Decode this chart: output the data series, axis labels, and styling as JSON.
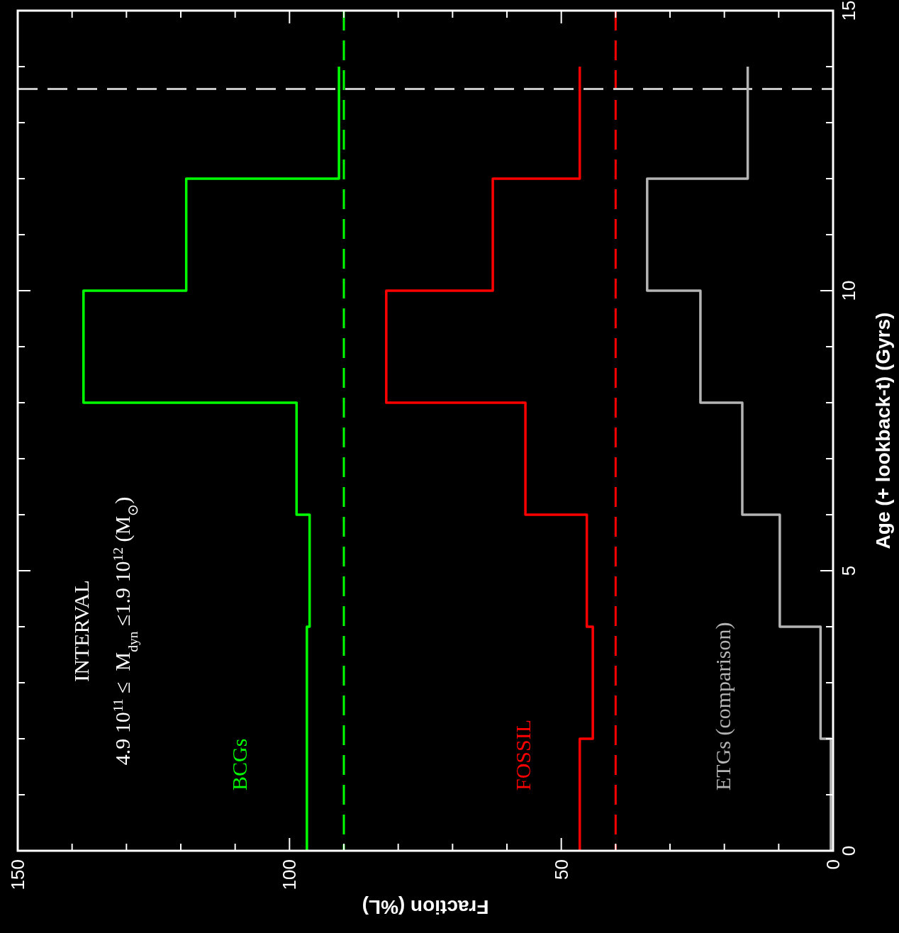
{
  "chart_data": {
    "type": "line",
    "xlabel": "Fraction (%L)",
    "ylabel": "Age (+ lookback-t) (Gyrs)",
    "series": [
      {
        "name": "BCGs",
        "color": "#00ff00",
        "x": [
          96.8,
          96.8,
          96.3,
          96.3,
          98.7,
          98.7,
          137.9,
          137.9,
          119,
          119,
          90.9,
          90.9
        ],
        "values": [
          0,
          4,
          4,
          6,
          6,
          8,
          8,
          10,
          10,
          12,
          12,
          14
        ]
      },
      {
        "name": "FOSSIL",
        "color": "#ff0000",
        "x": [
          46.6,
          46.6,
          44.2,
          44.2,
          45.3,
          45.3,
          56.6,
          56.6,
          82.2,
          82.2,
          62.6,
          62.6,
          46.6,
          46.6
        ],
        "values": [
          0,
          2,
          2,
          4,
          4,
          6,
          6,
          8,
          8,
          10,
          10,
          12,
          12,
          14
        ]
      },
      {
        "name": "ETGs (comparison)",
        "color": "#b4b4b4",
        "x": [
          0.4,
          0.4,
          2.3,
          2.3,
          9.8,
          9.8,
          16.7,
          16.7,
          24.4,
          24.4,
          34.2,
          34.2,
          15.7,
          15.7
        ],
        "values": [
          0,
          2,
          2,
          4,
          4,
          6,
          6,
          8,
          8,
          10,
          10,
          12,
          12,
          14
        ]
      }
    ],
    "xlim": [
      150,
      0
    ],
    "xticks": [
      150,
      {
        "value": 140,
        "label": null
      },
      {
        "value": 130,
        "label": null
      },
      {
        "value": 120,
        "label": null
      },
      {
        "value": 110,
        "label": null
      },
      100,
      {
        "value": 90,
        "label": null
      },
      {
        "value": 80,
        "label": null
      },
      {
        "value": 70,
        "label": null
      },
      {
        "value": 60,
        "label": null
      },
      50,
      {
        "value": 40,
        "label": null
      },
      {
        "value": 30,
        "label": null
      },
      {
        "value": 20,
        "label": null
      },
      {
        "value": 10,
        "label": null
      },
      0
    ],
    "ylim": [
      0,
      15
    ],
    "yticks": [
      0,
      {
        "value": 1,
        "label": null
      },
      {
        "value": 2,
        "label": null
      },
      {
        "value": 3,
        "label": null
      },
      {
        "value": 4,
        "label": null
      },
      5,
      {
        "value": 6,
        "label": null
      },
      {
        "value": 7,
        "label": null
      },
      {
        "value": 8,
        "label": null
      },
      {
        "value": 9,
        "label": null
      },
      10,
      {
        "value": 11,
        "label": null
      },
      {
        "value": 12,
        "label": null
      },
      {
        "value": 13,
        "label": null
      },
      {
        "value": 14,
        "label": null
      },
      15
    ],
    "ref_lines": [
      {
        "axis": "x",
        "value": 90,
        "color": "#00ff00",
        "line_style": "dashed"
      },
      {
        "axis": "x",
        "value": 40,
        "color": "#ff0000",
        "line_style": "dashed"
      },
      {
        "axis": "y",
        "value": 13.6,
        "color": "#c8c8c8",
        "line_style": "dashed"
      }
    ],
    "annotations": [
      "INTERVAL",
      "4.9 10$^{11}$ ≤  M$_{dyn}$ ≤1.9 10$^{12}$ (M$_{⊙}$)"
    ],
    "grid": false
  }
}
